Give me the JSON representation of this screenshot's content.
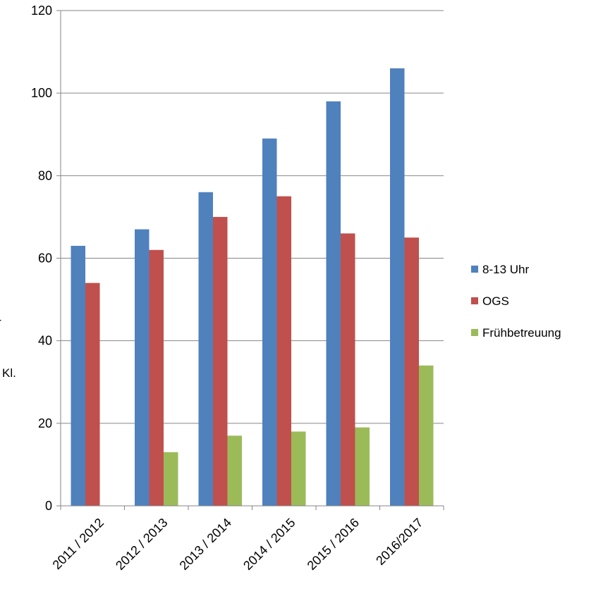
{
  "chart_data": {
    "type": "bar",
    "categories": [
      "2011 / 2012",
      "2012 / 2013",
      "2013 / 2014",
      "2014 / 2015",
      "2015 / 2016",
      "2016/2017"
    ],
    "series": [
      {
        "name": "8-13 Uhr",
        "color": "#4F81BD",
        "values": [
          63,
          67,
          76,
          89,
          98,
          106
        ]
      },
      {
        "name": "OGS",
        "color": "#C0504D",
        "values": [
          54,
          62,
          70,
          75,
          66,
          65
        ]
      },
      {
        "name": "Frühbetreuung",
        "color": "#9BBB59",
        "values": [
          0,
          13,
          17,
          18,
          19,
          34
        ]
      }
    ],
    "ylim": [
      0,
      120
    ],
    "yticks": [
      0,
      20,
      40,
      60,
      80,
      100,
      120
    ],
    "grid": true,
    "legend": "right",
    "title": "",
    "xlabel": "",
    "ylabel": ""
  },
  "stray_labels": {
    "kl": "Kl.",
    "edge": "r"
  }
}
